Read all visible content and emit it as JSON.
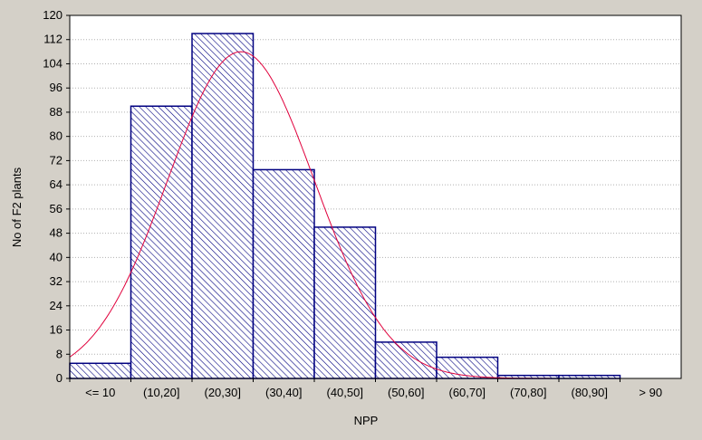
{
  "colors": {
    "background": "#d4d0c8",
    "plot_area": "#ffffff",
    "bar_stroke": "#000080",
    "bar_hatch": "#000080",
    "curve": "#e0003c",
    "grid": "#b0b0b0"
  },
  "chart_data": {
    "type": "bar",
    "title": "",
    "xlabel": "NPP",
    "ylabel": "No of F2 plants",
    "categories": [
      "<= 10",
      "(10,20]",
      "(20,30]",
      "(30,40]",
      "(40,50]",
      "(50,60]",
      "(60,70]",
      "(70,80]",
      "(80,90]",
      "> 90"
    ],
    "values": [
      5,
      90,
      114,
      69,
      50,
      12,
      7,
      1,
      1,
      0
    ],
    "ylim": [
      0,
      120
    ],
    "yticks": [
      0,
      8,
      16,
      24,
      32,
      40,
      48,
      56,
      64,
      72,
      80,
      88,
      96,
      104,
      112,
      120
    ],
    "grid": "horizontal dotted",
    "bar_fill": "diagonal hatch",
    "fitted_curve": {
      "type": "normal",
      "peak_value": 108,
      "peak_position_categories": 2.8,
      "sd_categories": 1.2
    }
  }
}
